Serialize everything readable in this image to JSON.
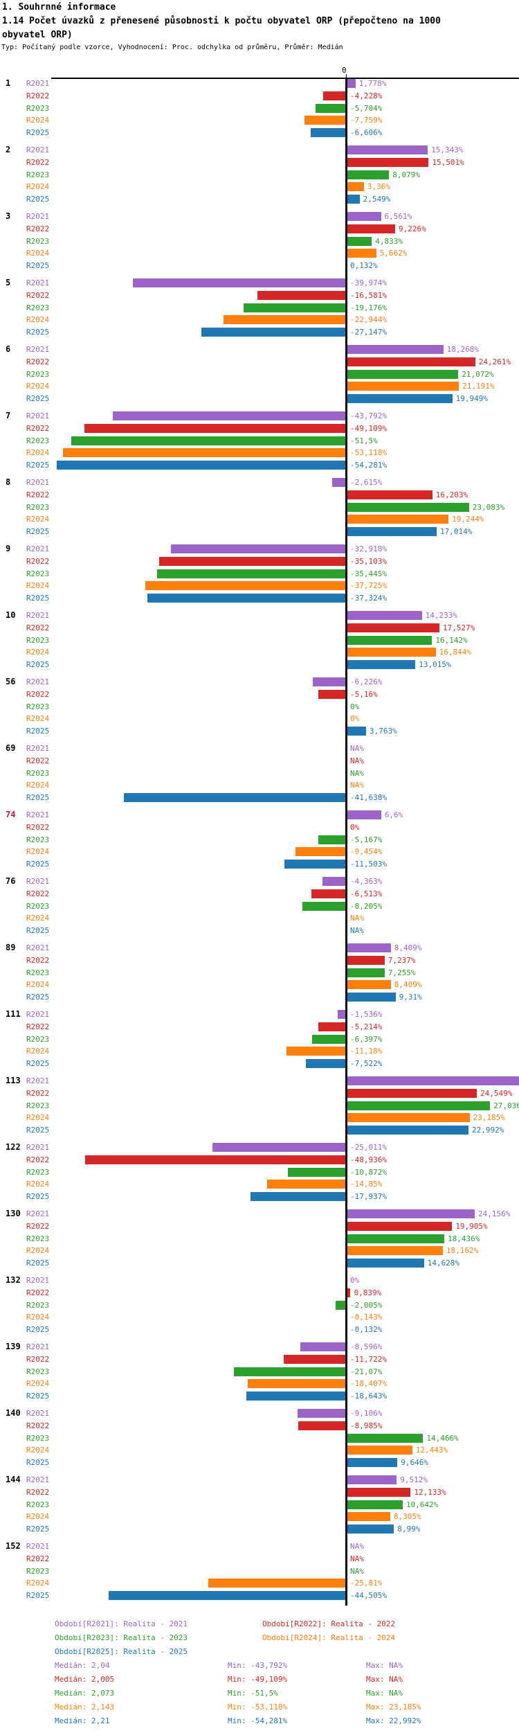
{
  "header": {
    "section_title": "1. Souhrnné informace",
    "indicator_title": "1.14 Počet úvazků z přenesené působnosti k počtu obyvatel ORP (přepočteno na 1000 obyvatel ORP)",
    "meta": "Typ: Počítaný podle vzorce, Vyhodnocení: Proc. odchylka od průměru, Průměr: Medián"
  },
  "axis": {
    "zero_label": "0"
  },
  "series_colors": {
    "R2021": "#9C63C9",
    "R2022": "#D62728",
    "R2023": "#2CA02C",
    "R2024": "#FF7F0E",
    "R2025": "#1F77B4"
  },
  "chart_data": {
    "type": "bar",
    "orientation": "horizontal",
    "unit": "%",
    "value_meaning": "Proc. odchylka od průměru (Medián)",
    "series_names": [
      "R2021",
      "R2022",
      "R2023",
      "R2024",
      "R2025"
    ],
    "groups": [
      {
        "id": "1",
        "bars": [
          {
            "v": 1.778,
            "label": "1,778%"
          },
          {
            "v": -4.228,
            "label": "-4,228%"
          },
          {
            "v": -5.704,
            "label": "-5,704%"
          },
          {
            "v": -7.759,
            "label": "-7,759%"
          },
          {
            "v": -6.606,
            "label": "-6,606%"
          }
        ]
      },
      {
        "id": "2",
        "bars": [
          {
            "v": 15.343,
            "label": "15,343%"
          },
          {
            "v": 15.501,
            "label": "15,501%"
          },
          {
            "v": 8.079,
            "label": "8,079%"
          },
          {
            "v": 3.36,
            "label": "3,36%"
          },
          {
            "v": 2.549,
            "label": "2,549%"
          }
        ]
      },
      {
        "id": "3",
        "bars": [
          {
            "v": 6.561,
            "label": "6,561%"
          },
          {
            "v": 9.226,
            "label": "9,226%"
          },
          {
            "v": 4.833,
            "label": "4,833%"
          },
          {
            "v": 5.662,
            "label": "5,662%"
          },
          {
            "v": 0.132,
            "label": "0,132%"
          }
        ]
      },
      {
        "id": "5",
        "bars": [
          {
            "v": -39.974,
            "label": "-39,974%"
          },
          {
            "v": -16.581,
            "label": "-16,581%"
          },
          {
            "v": -19.176,
            "label": "-19,176%"
          },
          {
            "v": -22.944,
            "label": "-22,944%"
          },
          {
            "v": -27.147,
            "label": "-27,147%"
          }
        ]
      },
      {
        "id": "6",
        "bars": [
          {
            "v": 18.268,
            "label": "18,268%"
          },
          {
            "v": 24.261,
            "label": "24,261%"
          },
          {
            "v": 21.072,
            "label": "21,072%"
          },
          {
            "v": 21.191,
            "label": "21,191%"
          },
          {
            "v": 19.949,
            "label": "19,949%"
          }
        ]
      },
      {
        "id": "7",
        "bars": [
          {
            "v": -43.792,
            "label": "-43,792%"
          },
          {
            "v": -49.109,
            "label": "-49,109%"
          },
          {
            "v": -51.5,
            "label": "-51,5%"
          },
          {
            "v": -53.118,
            "label": "-53,118%"
          },
          {
            "v": -54.281,
            "label": "-54,281%"
          }
        ]
      },
      {
        "id": "8",
        "bars": [
          {
            "v": -2.615,
            "label": "-2,615%"
          },
          {
            "v": 16.203,
            "label": "16,203%"
          },
          {
            "v": 23.083,
            "label": "23,083%"
          },
          {
            "v": 19.244,
            "label": "19,244%"
          },
          {
            "v": 17.014,
            "label": "17,014%"
          }
        ]
      },
      {
        "id": "9",
        "bars": [
          {
            "v": -32.918,
            "label": "-32,918%"
          },
          {
            "v": -35.103,
            "label": "-35,103%"
          },
          {
            "v": -35.445,
            "label": "-35,445%"
          },
          {
            "v": -37.725,
            "label": "-37,725%"
          },
          {
            "v": -37.324,
            "label": "-37,324%"
          }
        ]
      },
      {
        "id": "10",
        "bars": [
          {
            "v": 14.233,
            "label": "14,233%"
          },
          {
            "v": 17.527,
            "label": "17,527%"
          },
          {
            "v": 16.142,
            "label": "16,142%"
          },
          {
            "v": 16.844,
            "label": "16,844%"
          },
          {
            "v": 13.015,
            "label": "13,015%"
          }
        ]
      },
      {
        "id": "56",
        "bars": [
          {
            "v": -6.226,
            "label": "-6,226%"
          },
          {
            "v": -5.16,
            "label": "-5,16%"
          },
          {
            "v": 0,
            "label": "0%"
          },
          {
            "v": 0,
            "label": "0%"
          },
          {
            "v": 3.763,
            "label": "3,763%"
          }
        ]
      },
      {
        "id": "69",
        "bars": [
          {
            "v": null,
            "label": "NA%"
          },
          {
            "v": null,
            "label": "NA%"
          },
          {
            "v": null,
            "label": "NA%"
          },
          {
            "v": null,
            "label": "NA%"
          },
          {
            "v": -41.638,
            "label": "-41,638%"
          }
        ]
      },
      {
        "id": "74",
        "id_color": "#E8112D",
        "bars": [
          {
            "v": 6.6,
            "label": "6,6%"
          },
          {
            "v": 0,
            "label": "0%"
          },
          {
            "v": -5.167,
            "label": "-5,167%"
          },
          {
            "v": -9.454,
            "label": "-9,454%"
          },
          {
            "v": -11.503,
            "label": "-11,503%"
          }
        ]
      },
      {
        "id": "76",
        "bars": [
          {
            "v": -4.363,
            "label": "-4,363%"
          },
          {
            "v": -6.513,
            "label": "-6,513%"
          },
          {
            "v": -8.205,
            "label": "-8,205%"
          },
          {
            "v": null,
            "label": "NA%"
          },
          {
            "v": null,
            "label": "NA%"
          }
        ]
      },
      {
        "id": "89",
        "bars": [
          {
            "v": 8.409,
            "label": "8,409%"
          },
          {
            "v": 7.237,
            "label": "7,237%"
          },
          {
            "v": 7.255,
            "label": "7,255%"
          },
          {
            "v": 8.409,
            "label": "8,409%"
          },
          {
            "v": 9.31,
            "label": "9,31%"
          }
        ]
      },
      {
        "id": "111",
        "bars": [
          {
            "v": -1.536,
            "label": "-1,536%"
          },
          {
            "v": -5.214,
            "label": "-5,214%"
          },
          {
            "v": -6.397,
            "label": "-6,397%"
          },
          {
            "v": -11.18,
            "label": "-11,18%"
          },
          {
            "v": -7.522,
            "label": "-7,522%"
          }
        ]
      },
      {
        "id": "113",
        "bars": [
          {
            "v": null,
            "label": "",
            "clip": true
          },
          {
            "v": 24.549,
            "label": "24,549%"
          },
          {
            "v": 27.036,
            "label": "27,036"
          },
          {
            "v": 23.185,
            "label": "23,185%"
          },
          {
            "v": 22.992,
            "label": "22,992%"
          }
        ]
      },
      {
        "id": "122",
        "bars": [
          {
            "v": -25.011,
            "label": "-25,011%"
          },
          {
            "v": -48.936,
            "label": "-48,936%"
          },
          {
            "v": -10.872,
            "label": "-10,872%"
          },
          {
            "v": -14.85,
            "label": "-14,85%"
          },
          {
            "v": -17.937,
            "label": "-17,937%"
          }
        ]
      },
      {
        "id": "130",
        "bars": [
          {
            "v": 24.156,
            "label": "24,156%"
          },
          {
            "v": 19.905,
            "label": "19,905%"
          },
          {
            "v": 18.436,
            "label": "18,436%"
          },
          {
            "v": 18.162,
            "label": "18,162%"
          },
          {
            "v": 14.628,
            "label": "14,628%"
          }
        ]
      },
      {
        "id": "132",
        "bars": [
          {
            "v": 0,
            "label": "0%"
          },
          {
            "v": 0.839,
            "label": "0,839%"
          },
          {
            "v": -2.005,
            "label": "-2,005%"
          },
          {
            "v": -0.143,
            "label": "-0,143%"
          },
          {
            "v": -0.132,
            "label": "-0,132%"
          }
        ]
      },
      {
        "id": "139",
        "bars": [
          {
            "v": -8.596,
            "label": "-8,596%"
          },
          {
            "v": -11.722,
            "label": "-11,722%"
          },
          {
            "v": -21.07,
            "label": "-21,07%"
          },
          {
            "v": -18.407,
            "label": "-18,407%"
          },
          {
            "v": -18.643,
            "label": "-18,643%"
          }
        ]
      },
      {
        "id": "140",
        "bars": [
          {
            "v": -9.106,
            "label": "-9,106%"
          },
          {
            "v": -8.985,
            "label": "-8,985%"
          },
          {
            "v": 14.466,
            "label": "14,466%"
          },
          {
            "v": 12.443,
            "label": "12,443%"
          },
          {
            "v": 9.646,
            "label": "9,646%"
          }
        ]
      },
      {
        "id": "144",
        "bars": [
          {
            "v": 9.512,
            "label": "9,512%"
          },
          {
            "v": 12.133,
            "label": "12,133%"
          },
          {
            "v": 10.642,
            "label": "10,642%"
          },
          {
            "v": 8.305,
            "label": "8,305%"
          },
          {
            "v": 8.99,
            "label": "8,99%"
          }
        ]
      },
      {
        "id": "152",
        "bars": [
          {
            "v": null,
            "label": "NA%"
          },
          {
            "v": null,
            "label": "NA%"
          },
          {
            "v": null,
            "label": "NA%"
          },
          {
            "v": -25.81,
            "label": "-25,81%"
          },
          {
            "v": -44.505,
            "label": "-44,505%"
          }
        ]
      }
    ]
  },
  "legend": {
    "items": [
      {
        "series": "R2021",
        "label": "Období[R2021]: Realita - 2021"
      },
      {
        "series": "R2022",
        "label": "Období[R2022]: Realita - 2022"
      },
      {
        "series": "R2023",
        "label": "Období[R2023]: Realita - 2023"
      },
      {
        "series": "R2024",
        "label": "Období[R2024]: Realita - 2024"
      },
      {
        "series": "R2025",
        "label": "Období[R2025]: Realita - 2025"
      }
    ],
    "stats": [
      {
        "series": "R2021",
        "median": "Medián: 2,04",
        "min": "Min: -43,792%",
        "max": "Max: NA%"
      },
      {
        "series": "R2022",
        "median": "Medián: 2,005",
        "min": "Min: -49,109%",
        "max": "Max: NA%"
      },
      {
        "series": "R2023",
        "median": "Medián: 2,073",
        "min": "Min: -51,5%",
        "max": "Max: NA%"
      },
      {
        "series": "R2024",
        "median": "Medián: 2,143",
        "min": "Min: -53,118%",
        "max": "Max: 23,185%"
      },
      {
        "series": "R2025",
        "median": "Medián: 2,21",
        "min": "Min: -54,281%",
        "max": "Max: 22,992%"
      }
    ]
  }
}
